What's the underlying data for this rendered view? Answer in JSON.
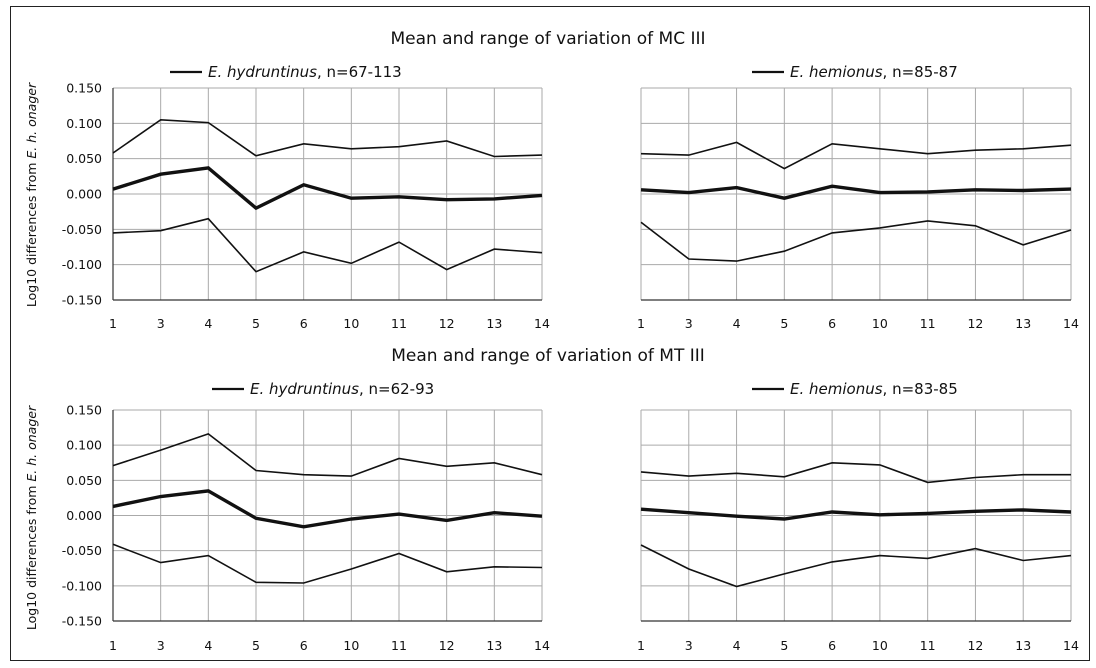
{
  "ylabel_prefix": "Log10 differences from ",
  "ylabel_italic": "E. h. onager",
  "chart_data": [
    {
      "type": "line",
      "title": "Mean and range of variation of MC III",
      "ylabel": "Log10 differences from E. h. onager",
      "ylim": [
        -0.15,
        0.15
      ],
      "yticks": [
        "0.150",
        "0.100",
        "0.050",
        "0.000",
        "-0.050",
        "-0.100",
        "-0.150"
      ],
      "grid": true,
      "panels": [
        {
          "legend": {
            "species": "E. hydruntinus",
            "n": ", n=67-113"
          },
          "categories": [
            "1",
            "3",
            "4",
            "5",
            "6",
            "10",
            "11",
            "12",
            "13",
            "14"
          ],
          "max": [
            0.058,
            0.105,
            0.101,
            0.054,
            0.071,
            0.064,
            0.067,
            0.075,
            0.053,
            0.055
          ],
          "mean": [
            0.007,
            0.028,
            0.037,
            -0.02,
            0.013,
            -0.006,
            -0.004,
            -0.008,
            -0.007,
            -0.002
          ],
          "min": [
            -0.055,
            -0.052,
            -0.035,
            -0.11,
            -0.082,
            -0.098,
            -0.068,
            -0.107,
            -0.078,
            -0.083
          ]
        },
        {
          "legend": {
            "species": "E. hemionus",
            "n": ", n=85-87"
          },
          "categories": [
            "1",
            "3",
            "4",
            "5",
            "6",
            "10",
            "11",
            "12",
            "13",
            "14"
          ],
          "max": [
            0.057,
            0.055,
            0.073,
            0.036,
            0.071,
            0.064,
            0.057,
            0.062,
            0.064,
            0.069
          ],
          "mean": [
            0.006,
            0.002,
            0.009,
            -0.006,
            0.011,
            0.002,
            0.003,
            0.006,
            0.005,
            0.007
          ],
          "min": [
            -0.04,
            -0.092,
            -0.095,
            -0.081,
            -0.055,
            -0.048,
            -0.038,
            -0.045,
            -0.072,
            -0.051
          ]
        }
      ]
    },
    {
      "type": "line",
      "title": "Mean and range of variation of MT III",
      "ylabel": "Log10 differences from E. h. onager",
      "ylim": [
        -0.15,
        0.15
      ],
      "yticks": [
        "0.150",
        "0.100",
        "0.050",
        "0.000",
        "-0.050",
        "-0.100",
        "-0.150"
      ],
      "grid": true,
      "panels": [
        {
          "legend": {
            "species": "E. hydruntinus",
            "n": ", n=62-93"
          },
          "categories": [
            "1",
            "3",
            "4",
            "5",
            "6",
            "10",
            "11",
            "12",
            "13",
            "14"
          ],
          "max": [
            0.071,
            0.093,
            0.116,
            0.064,
            0.058,
            0.056,
            0.081,
            0.07,
            0.075,
            0.058
          ],
          "mean": [
            0.013,
            0.027,
            0.035,
            -0.004,
            -0.016,
            -0.005,
            0.002,
            -0.007,
            0.004,
            -0.001
          ],
          "min": [
            -0.041,
            -0.067,
            -0.057,
            -0.095,
            -0.096,
            -0.076,
            -0.054,
            -0.08,
            -0.073,
            -0.074
          ]
        },
        {
          "legend": {
            "species": "E. hemionus",
            "n": ", n=83-85"
          },
          "categories": [
            "1",
            "3",
            "4",
            "5",
            "6",
            "10",
            "11",
            "12",
            "13",
            "14"
          ],
          "max": [
            0.062,
            0.056,
            0.06,
            0.055,
            0.075,
            0.072,
            0.047,
            0.054,
            0.058,
            0.058
          ],
          "mean": [
            0.009,
            0.004,
            -0.001,
            -0.005,
            0.005,
            0.001,
            0.003,
            0.006,
            0.008,
            0.005
          ],
          "min": [
            -0.042,
            -0.076,
            -0.101,
            -0.083,
            -0.066,
            -0.057,
            -0.061,
            -0.047,
            -0.064,
            -0.057
          ]
        }
      ]
    }
  ]
}
